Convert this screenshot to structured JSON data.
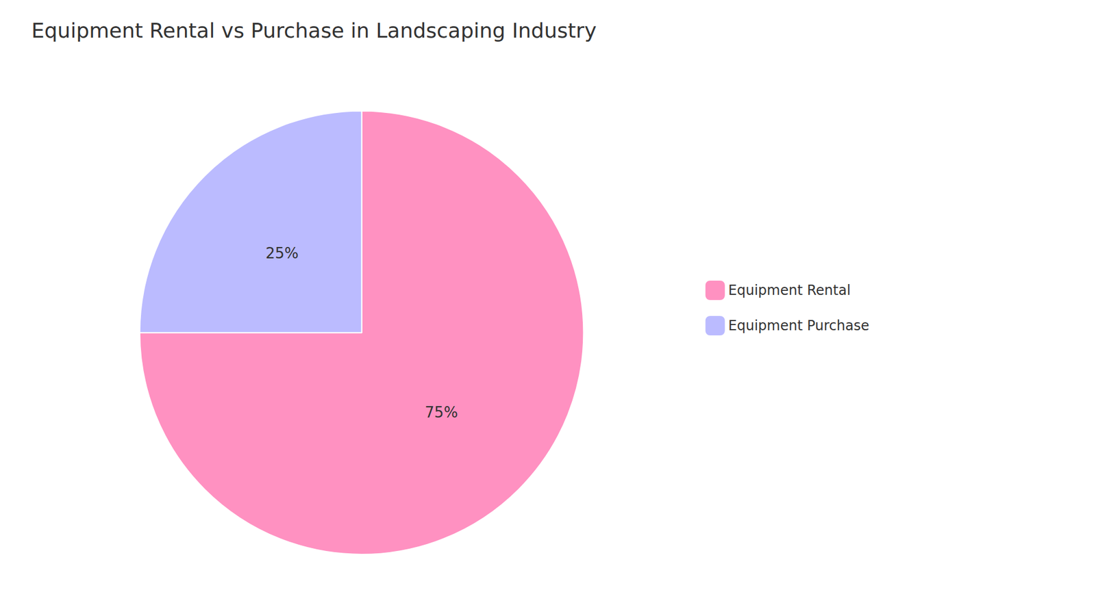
{
  "chart_data": {
    "type": "pie",
    "title": "Equipment Rental vs Purchase in Landscaping Industry",
    "categories": [
      "Equipment Rental",
      "Equipment Purchase"
    ],
    "values": [
      75,
      25
    ],
    "value_labels": [
      "75%",
      "25%"
    ],
    "colors": [
      "#FF91C1",
      "#BBBBFF"
    ],
    "data_labels": true,
    "legend": "right"
  }
}
